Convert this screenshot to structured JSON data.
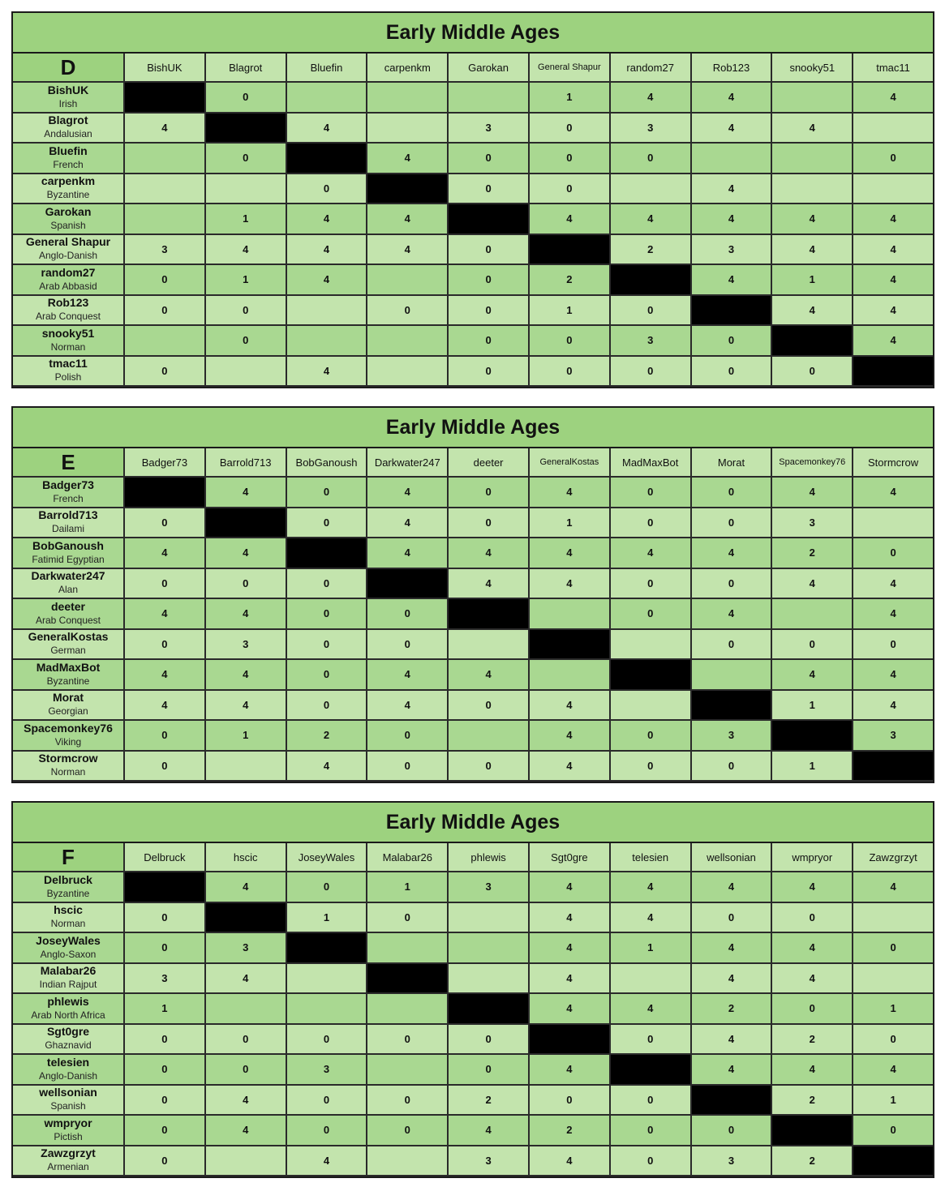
{
  "tables": [
    {
      "title": "Early Middle Ages",
      "group": "D",
      "players": [
        {
          "name": "BishUK",
          "civ": "Irish"
        },
        {
          "name": "Blagrot",
          "civ": "Andalusian"
        },
        {
          "name": "Bluefin",
          "civ": "French"
        },
        {
          "name": "carpenkm",
          "civ": "Byzantine"
        },
        {
          "name": "Garokan",
          "civ": "Spanish"
        },
        {
          "name": "General Shapur",
          "civ": "Anglo-Danish"
        },
        {
          "name": "random27",
          "civ": "Arab Abbasid"
        },
        {
          "name": "Rob123",
          "civ": "Arab Conquest"
        },
        {
          "name": "snooky51",
          "civ": "Norman"
        },
        {
          "name": "tmac11",
          "civ": "Polish"
        }
      ],
      "results": [
        [
          null,
          "0",
          "",
          "",
          "",
          "1",
          "4",
          "4",
          "",
          "4"
        ],
        [
          "4",
          null,
          "4",
          "",
          "3",
          "0",
          "3",
          "4",
          "4",
          ""
        ],
        [
          "",
          "0",
          null,
          "4",
          "0",
          "0",
          "0",
          "",
          "",
          "0"
        ],
        [
          "",
          "",
          "0",
          null,
          "0",
          "0",
          "",
          "4",
          "",
          ""
        ],
        [
          "",
          "1",
          "4",
          "4",
          null,
          "4",
          "4",
          "4",
          "4",
          "4"
        ],
        [
          "3",
          "4",
          "4",
          "4",
          "0",
          null,
          "2",
          "3",
          "4",
          "4"
        ],
        [
          "0",
          "1",
          "4",
          "",
          "0",
          "2",
          null,
          "4",
          "1",
          "4"
        ],
        [
          "0",
          "0",
          "",
          "0",
          "0",
          "1",
          "0",
          null,
          "4",
          "4"
        ],
        [
          "",
          "0",
          "",
          "",
          "0",
          "0",
          "3",
          "0",
          null,
          "4"
        ],
        [
          "0",
          "",
          "4",
          "",
          "0",
          "0",
          "0",
          "0",
          "0",
          null
        ]
      ]
    },
    {
      "title": "Early Middle Ages",
      "group": "E",
      "players": [
        {
          "name": "Badger73",
          "civ": "French"
        },
        {
          "name": "Barrold713",
          "civ": "Dailami"
        },
        {
          "name": "BobGanoush",
          "civ": "Fatimid Egyptian"
        },
        {
          "name": "Darkwater247",
          "civ": "Alan"
        },
        {
          "name": "deeter",
          "civ": "Arab Conquest"
        },
        {
          "name": "GeneralKostas",
          "civ": "German"
        },
        {
          "name": "MadMaxBot",
          "civ": "Byzantine"
        },
        {
          "name": "Morat",
          "civ": "Georgian"
        },
        {
          "name": "Spacemonkey76",
          "civ": "Viking"
        },
        {
          "name": "Stormcrow",
          "civ": "Norman"
        }
      ],
      "results": [
        [
          null,
          "4",
          "0",
          "4",
          "0",
          "4",
          "0",
          "0",
          "4",
          "4"
        ],
        [
          "0",
          null,
          "0",
          "4",
          "0",
          "1",
          "0",
          "0",
          "3",
          ""
        ],
        [
          "4",
          "4",
          null,
          "4",
          "4",
          "4",
          "4",
          "4",
          "2",
          "0"
        ],
        [
          "0",
          "0",
          "0",
          null,
          "4",
          "4",
          "0",
          "0",
          "4",
          "4"
        ],
        [
          "4",
          "4",
          "0",
          "0",
          null,
          "",
          "0",
          "4",
          "",
          "4"
        ],
        [
          "0",
          "3",
          "0",
          "0",
          "",
          null,
          "",
          "0",
          "0",
          "0"
        ],
        [
          "4",
          "4",
          "0",
          "4",
          "4",
          "",
          null,
          "",
          "4",
          "4"
        ],
        [
          "4",
          "4",
          "0",
          "4",
          "0",
          "4",
          "",
          null,
          "1",
          "4"
        ],
        [
          "0",
          "1",
          "2",
          "0",
          "",
          "4",
          "0",
          "3",
          null,
          "3"
        ],
        [
          "0",
          "",
          "4",
          "0",
          "0",
          "4",
          "0",
          "0",
          "1",
          null
        ]
      ]
    },
    {
      "title": "Early Middle Ages",
      "group": "F",
      "players": [
        {
          "name": "Delbruck",
          "civ": "Byzantine"
        },
        {
          "name": "hscic",
          "civ": "Norman"
        },
        {
          "name": "JoseyWales",
          "civ": "Anglo-Saxon"
        },
        {
          "name": "Malabar26",
          "civ": "Indian Rajput"
        },
        {
          "name": "phlewis",
          "civ": "Arab North Africa"
        },
        {
          "name": "Sgt0gre",
          "civ": "Ghaznavid"
        },
        {
          "name": "telesien",
          "civ": "Anglo-Danish"
        },
        {
          "name": "wellsonian",
          "civ": "Spanish"
        },
        {
          "name": "wmpryor",
          "civ": "Pictish"
        },
        {
          "name": "Zawzgrzyt",
          "civ": "Armenian"
        }
      ],
      "results": [
        [
          null,
          "4",
          "0",
          "1",
          "3",
          "4",
          "4",
          "4",
          "4",
          "4"
        ],
        [
          "0",
          null,
          "1",
          "0",
          "",
          "4",
          "4",
          "0",
          "0",
          ""
        ],
        [
          "0",
          "3",
          null,
          "",
          "",
          "4",
          "1",
          "4",
          "4",
          "0"
        ],
        [
          "3",
          "4",
          "",
          null,
          "",
          "4",
          "",
          "4",
          "4",
          ""
        ],
        [
          "1",
          "",
          "",
          "",
          null,
          "4",
          "4",
          "2",
          "0",
          "1"
        ],
        [
          "0",
          "0",
          "0",
          "0",
          "0",
          null,
          "0",
          "4",
          "2",
          "0"
        ],
        [
          "0",
          "0",
          "3",
          "",
          "0",
          "4",
          null,
          "4",
          "4",
          "4"
        ],
        [
          "0",
          "4",
          "0",
          "0",
          "2",
          "0",
          "0",
          null,
          "2",
          "1"
        ],
        [
          "0",
          "4",
          "0",
          "0",
          "4",
          "2",
          "0",
          "0",
          null,
          "0"
        ],
        [
          "0",
          "",
          "4",
          "",
          "3",
          "4",
          "0",
          "3",
          "2",
          null
        ]
      ]
    }
  ],
  "colors": {
    "title_bg": "#9dd27f",
    "row_dark": "#a9d891",
    "row_light": "#c3e4ad",
    "diagonal": "#000000"
  }
}
